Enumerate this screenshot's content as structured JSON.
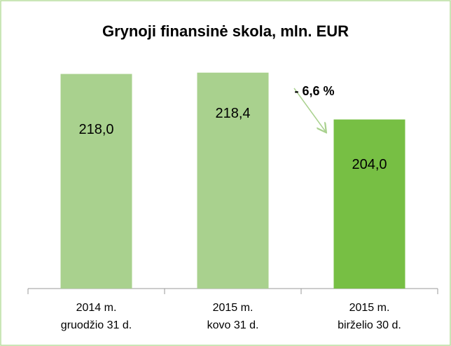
{
  "chart_data": {
    "type": "bar",
    "title": "Grynoji finansinė skola, mln. EUR",
    "categories": [
      [
        "2014 m.",
        "gruodžio 31 d."
      ],
      [
        "2015 m.",
        "kovo 31 d."
      ],
      [
        "2015 m.",
        "birželio 30 d."
      ]
    ],
    "values": [
      218.0,
      218.4,
      204.0
    ],
    "value_labels": [
      "218,0",
      "218,4",
      "204,0"
    ],
    "colors": [
      "#a9d18e",
      "#a9d18e",
      "#77bf44"
    ],
    "ylim": [
      152,
      222
    ],
    "annotation": "- 6,6 %"
  }
}
